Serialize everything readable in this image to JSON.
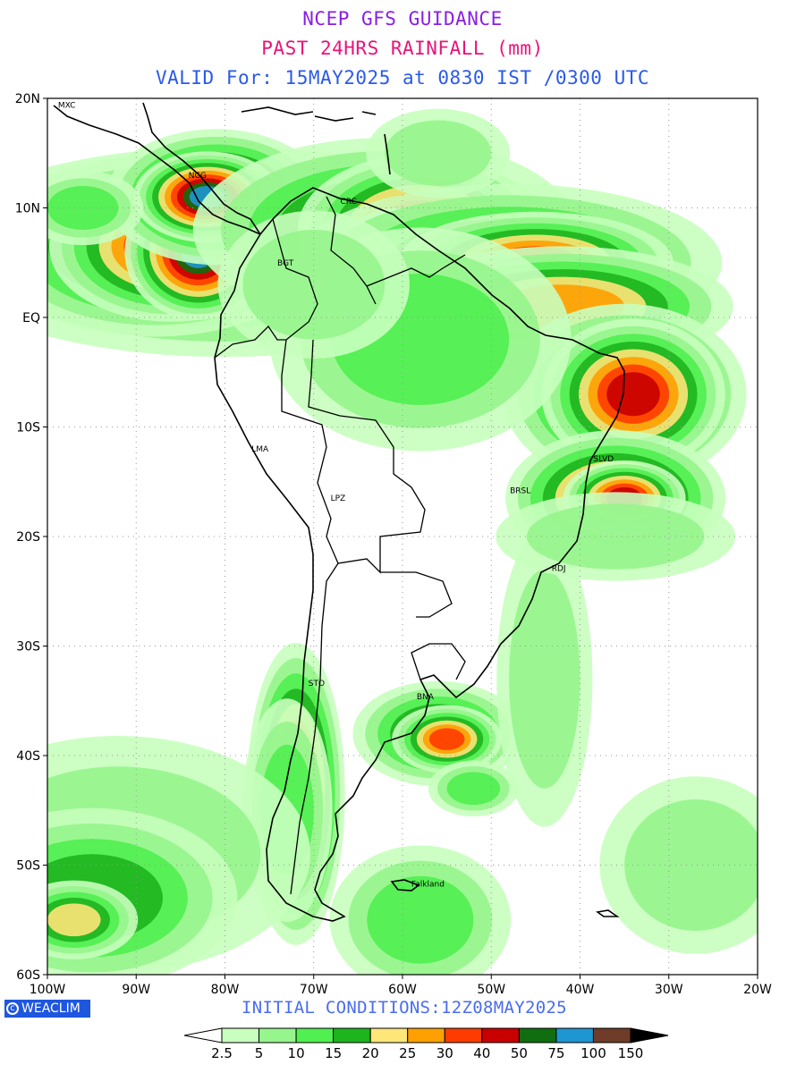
{
  "title": {
    "line1": "NCEP GFS GUIDANCE",
    "line2": "PAST 24HRS RAINFALL (mm)",
    "line3": "VALID For: 15MAY2025 at 0830 IST /0300 UTC",
    "colors": {
      "line1": "#8a1ee6",
      "line2": "#e8147a",
      "line3": "#2a5ae8"
    }
  },
  "axes": {
    "lat_labels": [
      "20N",
      "10N",
      "EQ",
      "10S",
      "20S",
      "30S",
      "40S",
      "50S",
      "60S"
    ],
    "lon_labels": [
      "100W",
      "90W",
      "80W",
      "70W",
      "60W",
      "50W",
      "40W",
      "30W",
      "20W"
    ],
    "lat_range": [
      -60,
      20
    ],
    "lon_range": [
      -100,
      -20
    ],
    "grid": "dotted"
  },
  "cities": [
    {
      "name": "MXC",
      "lon": -98.8,
      "lat": 19.4
    },
    {
      "name": "NCG",
      "lon": -84.1,
      "lat": 13.0
    },
    {
      "name": "CRC",
      "lon": -67.0,
      "lat": 10.6
    },
    {
      "name": "BGT",
      "lon": -74.1,
      "lat": 5.0
    },
    {
      "name": "LMA",
      "lon": -77.0,
      "lat": -12.0
    },
    {
      "name": "LPZ",
      "lon": -68.1,
      "lat": -16.5
    },
    {
      "name": "BRSL",
      "lon": -47.9,
      "lat": -15.8
    },
    {
      "name": "SLVD",
      "lon": -38.5,
      "lat": -12.9
    },
    {
      "name": "RDJ",
      "lon": -43.2,
      "lat": -22.9
    },
    {
      "name": "STO",
      "lon": -70.6,
      "lat": -33.4
    },
    {
      "name": "BNA",
      "lon": -58.4,
      "lat": -34.6
    },
    {
      "name": "Falkland",
      "lon": -59.0,
      "lat": -51.7
    }
  ],
  "legend": {
    "levels": [
      "2.5",
      "5",
      "10",
      "15",
      "20",
      "25",
      "30",
      "40",
      "50",
      "75",
      "100",
      "150"
    ],
    "colors": [
      "#ffffff",
      "#c8ffbe",
      "#96f58c",
      "#50f050",
      "#1eb41e",
      "#ffe678",
      "#ffa000",
      "#ff3c00",
      "#c80000",
      "#106e10",
      "#1e96d2",
      "#6e3c28",
      "#000000"
    ]
  },
  "footer": {
    "brand": "WEACLIM",
    "initial_conditions": "INITIAL CONDITIONS:12Z08MAY2025"
  },
  "rain_regions": [
    {
      "lon": -80,
      "lat": 6,
      "rx": 14,
      "ry": 4,
      "level": 5
    },
    {
      "lon": -88,
      "lat": 6.5,
      "rx": 7,
      "ry": 3,
      "level": 6
    },
    {
      "lon": -86,
      "lat": 6.5,
      "rx": 4,
      "ry": 2,
      "level": 8
    },
    {
      "lon": -83,
      "lat": 6,
      "rx": 2,
      "ry": 1.5,
      "level": 10
    },
    {
      "lon": -81,
      "lat": 11,
      "rx": 4,
      "ry": 2,
      "level": 7
    },
    {
      "lon": -82,
      "lat": 11,
      "rx": 2,
      "ry": 1,
      "level": 10
    },
    {
      "lon": -62,
      "lat": 8,
      "rx": 9,
      "ry": 3.5,
      "level": 5
    },
    {
      "lon": -58,
      "lat": 8,
      "rx": 4,
      "ry": 2,
      "level": 8
    },
    {
      "lon": -61,
      "lat": 5,
      "rx": 1.5,
      "ry": 1.2,
      "level": 10
    },
    {
      "lon": -48,
      "lat": 5,
      "rx": 10,
      "ry": 3,
      "level": 5
    },
    {
      "lon": -45,
      "lat": 5,
      "rx": 5,
      "ry": 1.5,
      "level": 7
    },
    {
      "lon": -42,
      "lat": 1,
      "rx": 7,
      "ry": 2,
      "level": 6
    },
    {
      "lon": -35,
      "lat": -7,
      "rx": 5,
      "ry": 3,
      "level": 6
    },
    {
      "lon": -34,
      "lat": -7,
      "rx": 3,
      "ry": 2,
      "level": 8
    },
    {
      "lon": -36,
      "lat": -16.5,
      "rx": 4,
      "ry": 2,
      "level": 7
    },
    {
      "lon": -35,
      "lat": -16.5,
      "rx": 2,
      "ry": 1,
      "level": 8
    },
    {
      "lon": -58,
      "lat": -2,
      "rx": 10,
      "ry": 6,
      "level": 3
    },
    {
      "lon": -70,
      "lat": 3,
      "rx": 8,
      "ry": 5,
      "level": 2
    },
    {
      "lon": -72,
      "lat": -43.5,
      "rx": 1.6,
      "ry": 4,
      "level": 8
    },
    {
      "lon": -73,
      "lat": -45,
      "rx": 3,
      "ry": 6,
      "level": 3
    },
    {
      "lon": -56,
      "lat": -38,
      "rx": 4,
      "ry": 2,
      "level": 5
    },
    {
      "lon": -55,
      "lat": -38.5,
      "rx": 2,
      "ry": 1,
      "level": 7
    },
    {
      "lon": -52,
      "lat": -43,
      "rx": 3,
      "ry": 1.5,
      "level": 3
    },
    {
      "lon": -92,
      "lat": -49,
      "rx": 16,
      "ry": 8,
      "level": 2
    },
    {
      "lon": -95,
      "lat": -53,
      "rx": 8,
      "ry": 4,
      "level": 4
    },
    {
      "lon": -97,
      "lat": -55,
      "rx": 3,
      "ry": 1.5,
      "level": 5
    },
    {
      "lon": -58,
      "lat": -55,
      "rx": 6,
      "ry": 4,
      "level": 3
    },
    {
      "lon": -27,
      "lat": -50,
      "rx": 8,
      "ry": 6,
      "level": 2
    },
    {
      "lon": -44,
      "lat": -33,
      "rx": 4,
      "ry": 10,
      "level": 2
    },
    {
      "lon": -36,
      "lat": -20,
      "rx": 10,
      "ry": 3,
      "level": 2
    },
    {
      "lon": -96,
      "lat": 10,
      "rx": 4,
      "ry": 2,
      "level": 3
    },
    {
      "lon": -56,
      "lat": 15,
      "rx": 6,
      "ry": 3,
      "level": 2
    }
  ]
}
